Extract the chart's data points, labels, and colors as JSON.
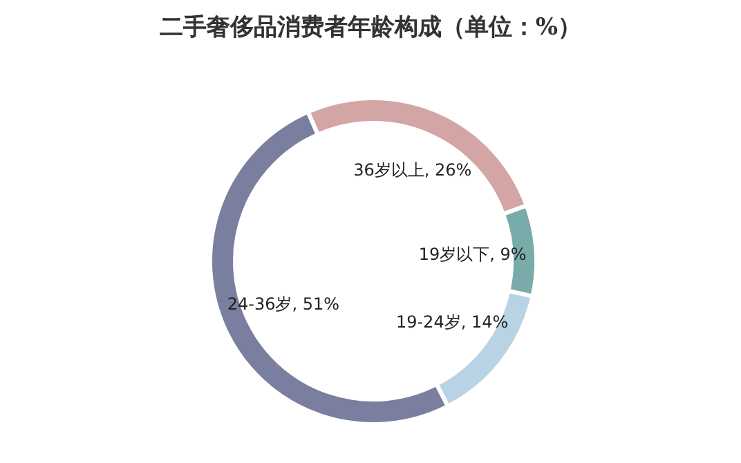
{
  "chart_data": {
    "type": "donut",
    "title": "二手奢侈品消费者年龄构成（单位：%）",
    "categories": [
      "19岁以下",
      "19-24岁",
      "24-36岁",
      "36岁以上"
    ],
    "values": [
      9,
      14,
      51,
      26
    ],
    "colors": [
      "#7aabab",
      "#b8d3e3",
      "#7a7f9f",
      "#d4a5a5"
    ],
    "value_labels": [
      "9%",
      "14%",
      "51%",
      "26%"
    ],
    "legend": false
  }
}
